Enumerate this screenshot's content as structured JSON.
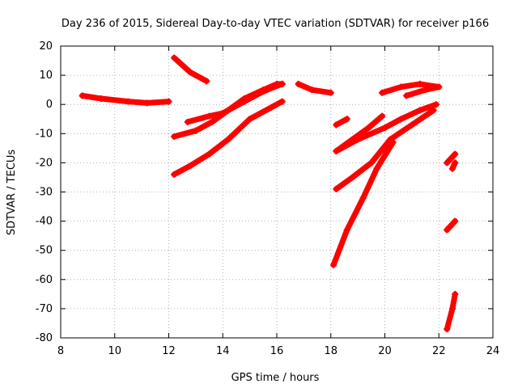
{
  "chart_data": {
    "type": "scatter",
    "title": "Day 236 of 2015, Sidereal Day-to-day VTEC variation (SDTVAR) for receiver p166",
    "xlabel": "GPS time / hours",
    "ylabel": "SDTVAR / TECUs",
    "xlim": [
      8,
      24
    ],
    "ylim": [
      -80,
      20
    ],
    "xticks": [
      8,
      10,
      12,
      14,
      16,
      18,
      20,
      22,
      24
    ],
    "yticks": [
      -80,
      -70,
      -60,
      -50,
      -40,
      -30,
      -20,
      -10,
      0,
      10,
      20
    ],
    "grid": true,
    "legend": "none",
    "marker_color": "#ff0000",
    "series": [
      {
        "x": [
          8.8,
          9.5,
          10.5,
          11.2,
          12.0
        ],
        "y": [
          3,
          2,
          1,
          0.5,
          1
        ]
      },
      {
        "x": [
          12.2,
          12.8,
          13.4
        ],
        "y": [
          16,
          11,
          8
        ]
      },
      {
        "x": [
          12.2,
          13.0,
          13.6,
          14.2,
          14.8,
          15.5,
          16.0,
          16.2
        ],
        "y": [
          -11,
          -9,
          -6,
          -2,
          2,
          5,
          7,
          7
        ]
      },
      {
        "x": [
          12.7,
          13.5,
          14.0,
          14.8,
          15.4,
          15.9,
          16.2
        ],
        "y": [
          -6,
          -4,
          -3,
          1,
          4,
          6,
          7
        ]
      },
      {
        "x": [
          12.2,
          12.8,
          13.5,
          14.2,
          15.0,
          15.8,
          16.2
        ],
        "y": [
          -24,
          -21,
          -17,
          -12,
          -5,
          -1,
          1
        ]
      },
      {
        "x": [
          16.8,
          17.3,
          18.0
        ],
        "y": [
          7,
          5,
          4
        ]
      },
      {
        "x": [
          18.2,
          18.6
        ],
        "y": [
          -7,
          -5
        ]
      },
      {
        "x": [
          18.2,
          18.8,
          19.4,
          19.9
        ],
        "y": [
          -16,
          -12,
          -8,
          -4
        ]
      },
      {
        "x": [
          18.2,
          19.0,
          20.0,
          20.6,
          21.3,
          21.9
        ],
        "y": [
          -16,
          -12,
          -8,
          -5,
          -2,
          0
        ]
      },
      {
        "x": [
          18.2,
          18.8,
          19.5,
          20.2,
          21.0,
          21.8
        ],
        "y": [
          -29,
          -25,
          -20,
          -12,
          -7,
          -2
        ]
      },
      {
        "x": [
          18.1,
          18.6,
          19.2,
          19.7,
          20.3
        ],
        "y": [
          -55,
          -43,
          -32,
          -22,
          -13
        ]
      },
      {
        "x": [
          19.9,
          20.6,
          21.3,
          22.0
        ],
        "y": [
          4,
          6,
          7,
          6
        ]
      },
      {
        "x": [
          20.8,
          21.5,
          22.0
        ],
        "y": [
          3,
          5,
          6
        ]
      },
      {
        "x": [
          22.3,
          22.6
        ],
        "y": [
          -20,
          -17
        ]
      },
      {
        "x": [
          22.5,
          22.6
        ],
        "y": [
          -22,
          -20
        ]
      },
      {
        "x": [
          22.3,
          22.6
        ],
        "y": [
          -43,
          -40
        ]
      },
      {
        "x": [
          22.3,
          22.5,
          22.6
        ],
        "y": [
          -77,
          -70,
          -65
        ]
      }
    ]
  }
}
